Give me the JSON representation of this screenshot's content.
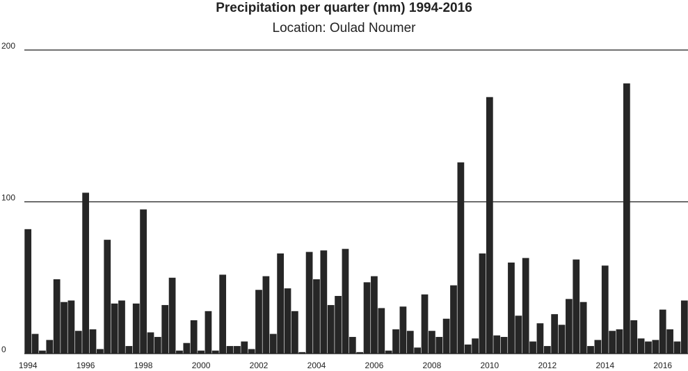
{
  "chart_data": {
    "type": "bar",
    "title": "Precipitation per quarter (mm) 1994-2016",
    "subtitle": "Location: Oulad Noumer",
    "xlabel": "",
    "ylabel": "",
    "ylim": [
      0,
      200
    ],
    "yticks": [
      0,
      100,
      200
    ],
    "x_tick_labels": [
      "1994",
      "1996",
      "1998",
      "2000",
      "2002",
      "2004",
      "2006",
      "2008",
      "2010",
      "2012",
      "2014",
      "2016"
    ],
    "x_tick_label_positions": [
      0.5,
      8.5,
      16.5,
      24.5,
      32.5,
      40.5,
      48.5,
      56.5,
      64.5,
      72.5,
      80.5,
      88.5
    ],
    "grid": "horizontal",
    "bar_color": "#262626",
    "values": [
      82,
      13,
      2,
      9,
      49,
      34,
      35,
      15,
      106,
      16,
      3,
      75,
      33,
      35,
      5,
      33,
      95,
      14,
      11,
      32,
      50,
      2,
      7,
      22,
      2,
      28,
      2,
      52,
      5,
      5,
      8,
      3,
      42,
      51,
      13,
      66,
      43,
      28,
      1,
      67,
      49,
      68,
      32,
      38,
      69,
      11,
      1,
      47,
      51,
      30,
      2,
      16,
      31,
      15,
      4,
      39,
      15,
      11,
      23,
      45,
      126,
      6,
      10,
      66,
      169,
      12,
      11,
      60,
      25,
      63,
      8,
      20,
      5,
      26,
      19,
      36,
      62,
      34,
      5,
      9,
      58,
      15,
      16,
      178,
      22,
      10,
      8,
      9,
      29,
      16,
      8,
      35
    ]
  }
}
